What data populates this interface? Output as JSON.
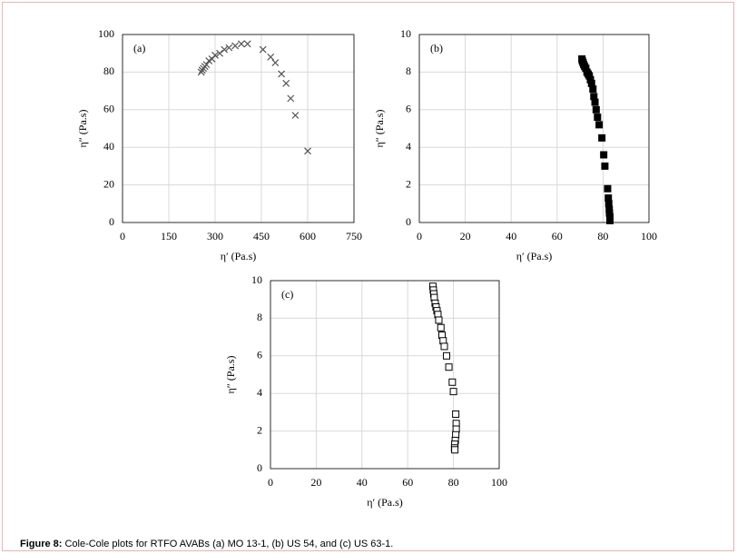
{
  "chart_data": [
    {
      "type": "scatter",
      "annotation": "(a)",
      "x_label": "η′ (Pa.s)",
      "y_label": "η″ (Pa.s)",
      "marker": "x",
      "color": "#555555",
      "x": [
        255,
        258,
        262,
        267,
        272,
        280,
        290,
        300,
        315,
        330,
        345,
        365,
        385,
        405,
        455,
        480,
        495,
        515,
        530,
        545,
        560,
        600
      ],
      "values": [
        80,
        81,
        82,
        83,
        84,
        86,
        87,
        89,
        90,
        92,
        93,
        94,
        95,
        95,
        92,
        88,
        85,
        79,
        74,
        66,
        57,
        38
      ],
      "xlim": [
        0,
        750
      ],
      "xticks": [
        0,
        150,
        300,
        450,
        600,
        750
      ],
      "ylim": [
        0,
        100
      ],
      "yticks": [
        0,
        20,
        40,
        60,
        80,
        100
      ],
      "grid": true
    },
    {
      "type": "scatter",
      "annotation": "(b)",
      "x_label": "η′ (Pa.s)",
      "y_label": "η″ (Pa.s)",
      "marker": "filled-square",
      "color": "#000000",
      "x": [
        70.8,
        71,
        71.3,
        71.6,
        72,
        72.5,
        73,
        73.5,
        74,
        74.5,
        75,
        75.6,
        76,
        76.5,
        77,
        77.6,
        78.3,
        79.5,
        80.3,
        80.8,
        82,
        82.3,
        82.5,
        82.7,
        82.8,
        83,
        83
      ],
      "values": [
        8.7,
        8.6,
        8.5,
        8.4,
        8.3,
        8.2,
        8.0,
        7.9,
        7.8,
        7.6,
        7.4,
        7.1,
        6.7,
        6.4,
        6.0,
        5.6,
        5.2,
        4.5,
        3.6,
        3.0,
        1.8,
        1.3,
        1.0,
        0.7,
        0.5,
        0.3,
        0.1
      ],
      "xlim": [
        0,
        100
      ],
      "xticks": [
        0,
        20,
        40,
        60,
        80,
        100
      ],
      "ylim": [
        0,
        10
      ],
      "yticks": [
        0,
        2,
        4,
        6,
        8,
        10
      ],
      "grid": true
    },
    {
      "type": "scatter",
      "annotation": "(c)",
      "x_label": "η′ (Pa.s)",
      "y_label": "η″ (Pa.s)",
      "marker": "open-square",
      "color": "#000000",
      "x": [
        71,
        71.2,
        71.4,
        71.6,
        72,
        72.4,
        72.8,
        73.2,
        73.6,
        74.5,
        75,
        75.5,
        76,
        77,
        78,
        79.5,
        80,
        81,
        81.2,
        81.2,
        81,
        80.8,
        80.6,
        80.5,
        80.6
      ],
      "values": [
        9.7,
        9.5,
        9.3,
        9.1,
        8.8,
        8.6,
        8.4,
        8.2,
        7.9,
        7.5,
        7.1,
        6.8,
        6.5,
        6.0,
        5.4,
        4.6,
        4.1,
        2.9,
        2.4,
        2.1,
        1.8,
        1.5,
        1.3,
        1.1,
        1.0
      ],
      "xlim": [
        0,
        100
      ],
      "xticks": [
        0,
        20,
        40,
        60,
        80,
        100
      ],
      "ylim": [
        0,
        10
      ],
      "yticks": [
        0,
        2,
        4,
        6,
        8,
        10
      ],
      "grid": true
    }
  ],
  "caption": {
    "label": "Figure 8:",
    "text": "Cole-Cole plots for RTFO AVABs (a) MO 13-1, (b) US 54, and (c) US 63-1."
  }
}
